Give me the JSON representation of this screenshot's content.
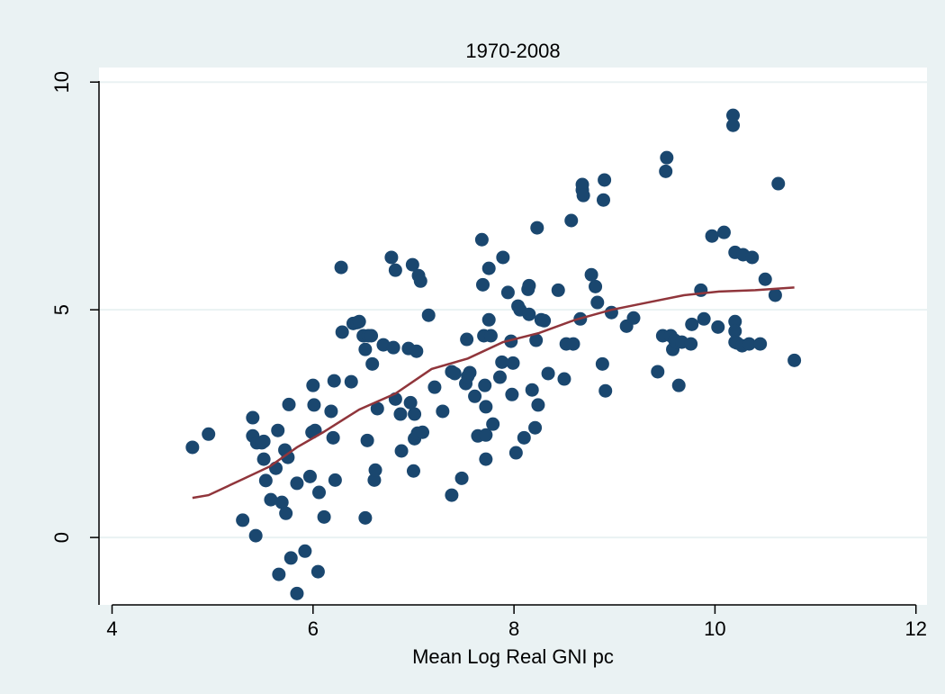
{
  "chart_data": {
    "type": "scatter",
    "title": "1970-2008",
    "x_label": "Mean Log Real GNI pc",
    "xlim": [
      3.87,
      12.11
    ],
    "ylim": [
      -1.48,
      10.32
    ],
    "xticks": [
      4,
      6,
      8,
      10,
      12
    ],
    "yticks": [
      0,
      5,
      10
    ],
    "grid": true,
    "series": [
      {
        "type": "scatter",
        "color": "#1a476f",
        "x": [
          4.8,
          4.96,
          5.3,
          5.4,
          5.4,
          5.43,
          5.44,
          5.49,
          5.51,
          5.53,
          5.51,
          5.58,
          5.63,
          5.65,
          5.66,
          5.69,
          5.72,
          5.73,
          5.75,
          5.76,
          5.78,
          5.84,
          5.84,
          5.92,
          5.97,
          5.99,
          6.0,
          6.01,
          6.02,
          6.05,
          6.06,
          6.11,
          6.18,
          6.2,
          6.21,
          6.22,
          6.28,
          6.29,
          6.38,
          6.4,
          6.44,
          6.46,
          6.5,
          6.52,
          6.52,
          6.54,
          6.55,
          6.58,
          6.59,
          6.61,
          6.62,
          6.64,
          6.7,
          6.78,
          6.8,
          6.82,
          6.82,
          6.87,
          6.88,
          6.95,
          6.97,
          6.99,
          7.0,
          7.01,
          7.01,
          7.03,
          7.04,
          7.05,
          7.07,
          7.09,
          7.15,
          7.21,
          7.29,
          7.38,
          7.38,
          7.41,
          7.48,
          7.52,
          7.53,
          7.54,
          7.56,
          7.61,
          7.64,
          7.68,
          7.69,
          7.7,
          7.71,
          7.72,
          7.72,
          7.72,
          7.75,
          7.75,
          7.77,
          7.79,
          7.86,
          7.88,
          7.89,
          7.94,
          7.97,
          7.98,
          7.99,
          8.02,
          8.04,
          8.06,
          8.1,
          8.14,
          8.15,
          8.15,
          8.18,
          8.21,
          8.22,
          8.23,
          8.24,
          8.27,
          8.3,
          8.34,
          8.44,
          8.5,
          8.52,
          8.57,
          8.59,
          8.66,
          8.68,
          8.68,
          8.69,
          8.77,
          8.81,
          8.83,
          8.88,
          8.89,
          8.9,
          8.91,
          8.97,
          9.12,
          9.19,
          9.43,
          9.48,
          9.51,
          9.52,
          9.56,
          9.58,
          9.6,
          9.62,
          9.64,
          9.67,
          9.76,
          9.77,
          9.86,
          9.89,
          9.97,
          10.03,
          10.09,
          10.18,
          10.18,
          10.2,
          10.2,
          10.2,
          10.2,
          10.22,
          10.27,
          10.28,
          10.34,
          10.37,
          10.45,
          10.5,
          10.6,
          10.63,
          10.79
        ],
        "values": [
          1.98,
          2.27,
          0.38,
          2.63,
          2.23,
          0.04,
          2.08,
          2.08,
          1.72,
          1.25,
          2.11,
          0.83,
          1.52,
          2.35,
          -0.81,
          0.77,
          1.92,
          0.53,
          1.76,
          2.92,
          -0.45,
          -1.23,
          1.19,
          -0.3,
          1.34,
          2.31,
          3.34,
          2.91,
          2.35,
          -0.75,
          0.99,
          0.45,
          2.77,
          2.19,
          3.44,
          1.26,
          5.93,
          4.51,
          3.42,
          4.7,
          4.72,
          4.74,
          4.43,
          0.43,
          4.13,
          2.13,
          4.43,
          4.43,
          3.81,
          1.26,
          1.48,
          2.83,
          4.23,
          6.15,
          4.17,
          5.87,
          3.04,
          2.71,
          1.9,
          4.15,
          2.96,
          5.99,
          1.46,
          2.71,
          2.17,
          4.09,
          2.29,
          5.75,
          5.63,
          2.31,
          4.88,
          3.3,
          2.77,
          0.93,
          3.64,
          3.6,
          1.3,
          3.38,
          4.35,
          3.54,
          3.62,
          3.1,
          2.23,
          6.54,
          5.55,
          4.43,
          3.34,
          2.87,
          2.25,
          1.72,
          4.78,
          5.91,
          4.43,
          2.49,
          3.52,
          3.85,
          6.15,
          5.38,
          4.31,
          3.14,
          3.83,
          1.86,
          5.08,
          5.0,
          2.19,
          5.45,
          5.53,
          4.9,
          3.24,
          2.41,
          4.33,
          6.8,
          2.91,
          4.78,
          4.76,
          3.6,
          5.43,
          3.48,
          4.25,
          6.96,
          4.25,
          4.8,
          7.63,
          7.75,
          7.51,
          5.77,
          5.51,
          5.16,
          3.81,
          7.41,
          7.85,
          3.22,
          4.94,
          4.64,
          4.82,
          3.64,
          4.43,
          8.04,
          8.34,
          4.43,
          4.13,
          4.33,
          4.29,
          3.34,
          4.29,
          4.25,
          4.68,
          5.43,
          4.8,
          6.62,
          4.62,
          6.7,
          9.27,
          9.05,
          4.74,
          6.26,
          4.53,
          4.29,
          4.27,
          4.21,
          6.21,
          4.25,
          6.15,
          4.25,
          5.67,
          5.32,
          7.77,
          3.89
        ]
      },
      {
        "type": "line",
        "color": "#90353b",
        "x": [
          4.8,
          4.96,
          5.3,
          5.57,
          5.84,
          6.1,
          6.46,
          6.82,
          7.18,
          7.54,
          7.89,
          8.25,
          8.61,
          8.97,
          9.33,
          9.69,
          10.04,
          10.4,
          10.79
        ],
        "values": [
          0.87,
          0.93,
          1.28,
          1.56,
          1.98,
          2.31,
          2.81,
          3.16,
          3.7,
          3.93,
          4.29,
          4.49,
          4.78,
          5.0,
          5.16,
          5.32,
          5.4,
          5.43,
          5.49
        ]
      }
    ]
  }
}
